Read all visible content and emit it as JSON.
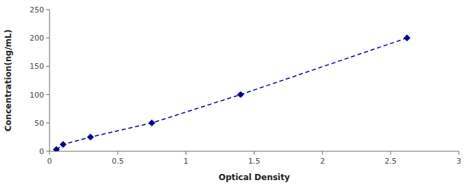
{
  "chart_data": {
    "type": "line",
    "x": [
      0.05,
      0.1,
      0.3,
      0.75,
      1.4,
      2.62
    ],
    "values": [
      3,
      12,
      25,
      50,
      100,
      200
    ],
    "color": "#00008B",
    "marker": "diamond",
    "line_style": "dashed",
    "xlabel": "Optical Density",
    "ylabel": "Concentration(ng/mL)",
    "xlim": [
      0,
      3
    ],
    "ylim": [
      0,
      250
    ],
    "xticks": [
      0,
      0.5,
      1,
      1.5,
      2,
      2.5,
      3
    ],
    "yticks": [
      0,
      50,
      100,
      150,
      200,
      250
    ],
    "grid": false
  }
}
